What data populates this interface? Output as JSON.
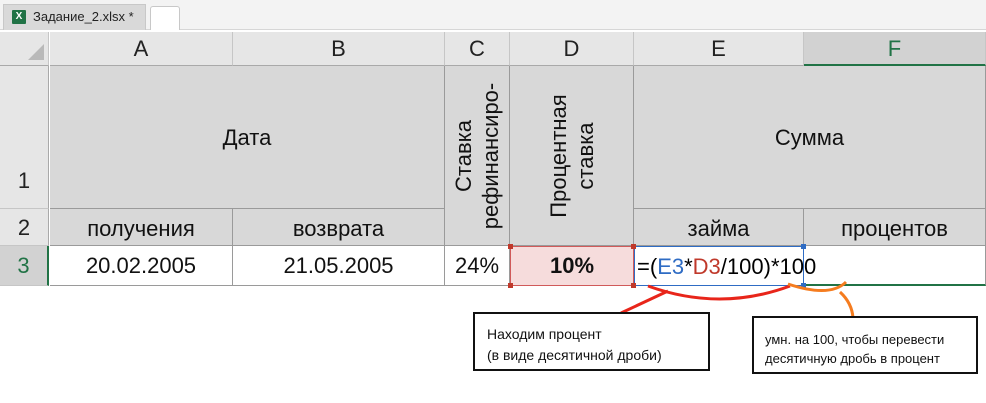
{
  "tab": {
    "icon": "excel-icon",
    "file_name": "Задание_2.xlsx *",
    "new_tab": ""
  },
  "columns": [
    "A",
    "B",
    "C",
    "D",
    "E",
    "F"
  ],
  "rows": [
    "1",
    "2",
    "3"
  ],
  "header_cells": {
    "date": "Дата",
    "date_received": "получения",
    "date_returned": "возврата",
    "refinancing_rate_line1": "Ставка",
    "refinancing_rate_line2": "рефинансиро-",
    "interest_rate_line1": "Процентная",
    "interest_rate_line2": "ставка",
    "sum": "Сумма",
    "sum_loan": "займа",
    "sum_interest": "процентов"
  },
  "row3": {
    "received": "20.02.2005",
    "returned": "21.05.2005",
    "refinancing_rate": "24%",
    "interest_rate": "10%",
    "formula": {
      "prefix": "=(",
      "ref1": "E3",
      "op1": "*",
      "ref2": "D3",
      "op2": "/100)*100"
    }
  },
  "annotations": {
    "left_line1": "Находим процент",
    "left_line2": "(в виде десятичной дроби)",
    "right_line1": "умн. на 100, чтобы перевести",
    "right_line2": "десятичную дробь в процент"
  },
  "colors": {
    "excel_green": "#217346",
    "ref_blue": "#2f6cc4",
    "ref_red": "#c0392b",
    "arc_red": "#e8251a",
    "arc_orange": "#f57c1f"
  }
}
